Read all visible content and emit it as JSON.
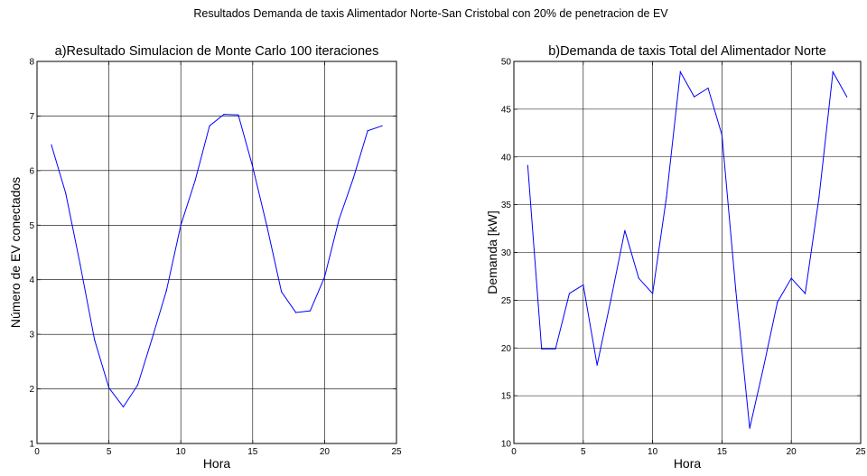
{
  "figure_title": "Resultados Demanda de taxis Alimentador Norte-San Cristobal con 20% de penetracion de EV",
  "chart_data": [
    {
      "type": "line",
      "title": "a)Resultado Simulacion de Monte Carlo 100 iteraciones",
      "xlabel": "Hora",
      "ylabel": "Número de EV conectados",
      "xlim": [
        0,
        25
      ],
      "ylim": [
        1,
        8
      ],
      "xticks": [
        0,
        5,
        10,
        15,
        20,
        25
      ],
      "yticks": [
        1,
        2,
        3,
        4,
        5,
        6,
        7,
        8
      ],
      "grid": true,
      "series_color": "#0000ff",
      "x": [
        1,
        2,
        3,
        4,
        5,
        6,
        7,
        8,
        9,
        10,
        11,
        12,
        13,
        14,
        15,
        16,
        17,
        18,
        19,
        20,
        21,
        22,
        23,
        24
      ],
      "values": [
        6.47,
        5.58,
        4.28,
        2.9,
        2.02,
        1.67,
        2.07,
        2.92,
        3.8,
        5.0,
        5.82,
        6.82,
        7.03,
        7.02,
        6.07,
        4.97,
        3.78,
        3.4,
        3.43,
        4.05,
        5.1,
        5.86,
        6.73,
        6.82
      ]
    },
    {
      "type": "line",
      "title": "b)Demanda de taxis Total del Alimentador Norte",
      "xlabel": "Hora",
      "ylabel": "Demanda [kW]",
      "xlim": [
        0,
        25
      ],
      "ylim": [
        10,
        50
      ],
      "xticks": [
        0,
        5,
        10,
        15,
        20,
        25
      ],
      "yticks": [
        10,
        15,
        20,
        25,
        30,
        35,
        40,
        45,
        50
      ],
      "grid": true,
      "series_color": "#0000ff",
      "x": [
        1,
        2,
        3,
        4,
        5,
        6,
        7,
        8,
        9,
        10,
        11,
        12,
        13,
        14,
        15,
        16,
        17,
        18,
        19,
        20,
        21,
        22,
        23,
        24
      ],
      "values": [
        39.1,
        19.9,
        19.9,
        25.7,
        26.6,
        18.2,
        25.1,
        32.3,
        27.3,
        25.7,
        35.8,
        48.9,
        46.3,
        47.2,
        42.3,
        26.0,
        11.6,
        18.0,
        24.8,
        27.3,
        25.7,
        35.8,
        48.9,
        46.3
      ]
    }
  ]
}
